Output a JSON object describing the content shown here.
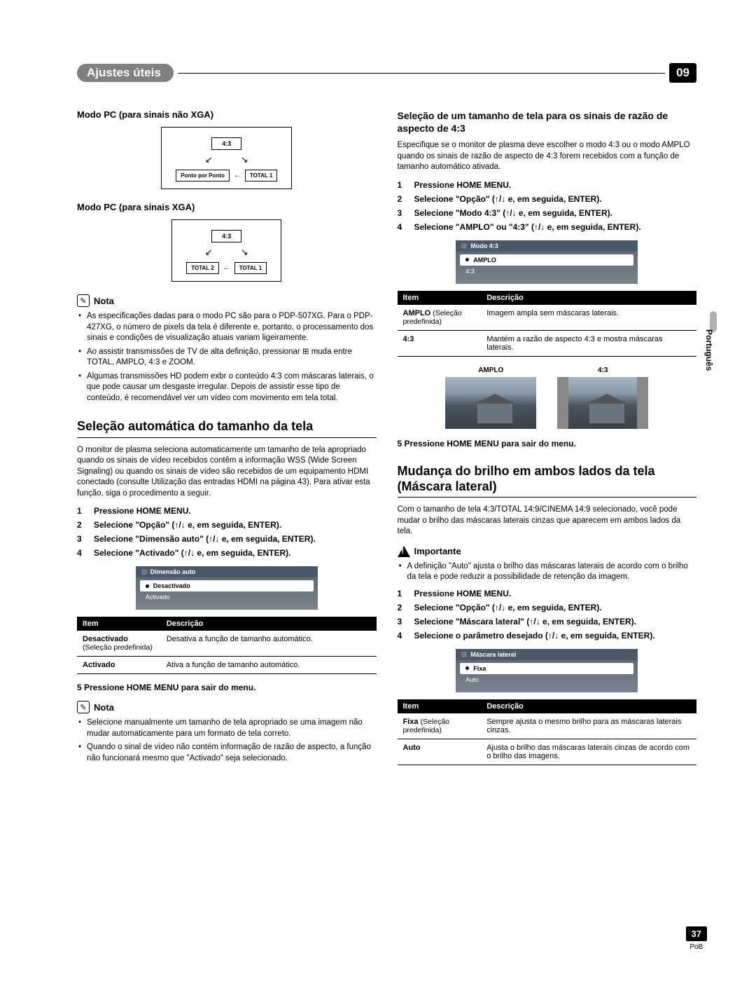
{
  "header": {
    "title": "Ajustes úteis",
    "chapter": "09"
  },
  "sideTab": "Português",
  "pageNum": "37",
  "pageSub": "PoB",
  "left": {
    "pcNonXga": {
      "title": "Modo PC (para sinais não XGA)",
      "top": "4:3",
      "bottomLeft": "Ponto por Ponto",
      "bottomRight": "TOTAL 1"
    },
    "pcXga": {
      "title": "Modo PC (para sinais XGA)",
      "top": "4:3",
      "bottomLeft": "TOTAL 2",
      "bottomRight": "TOTAL 1"
    },
    "note1": {
      "label": "Nota",
      "items": [
        "As especificações dadas para o modo PC são para o PDP-507XG. Para o PDP-427XG, o número de pixels da tela é diferente e, portanto, o processamento dos sinais e condições de visualização atuais variam ligeiramente.",
        "Ao assistir transmissões de TV de alta definição, pressionar ⊞ muda entre TOTAL, AMPLO, 4:3 e ZOOM.",
        "Algumas transmissões HD podem exbr o conteúdo 4:3 com máscaras laterais, o que pode causar um desgaste irregular. Depois de assistir esse tipo de conteúdo, é recomendável ver um vídeo com movimento em tela total."
      ]
    },
    "autoSize": {
      "title": "Seleção automática do tamanho da tela",
      "body": "O monitor de plasma seleciona automaticamente um tamanho de tela apropriado quando os sinais de vídeo recebidos contêm a informação WSS (Wide Screen Signaling) ou quando os sinais de vídeo são recebidos de um equipamento HDMI conectado (consulte Utilização das entradas HDMI na página 43). Para ativar esta função, siga o procedimento a seguir.",
      "steps": [
        "Pressione HOME MENU.",
        "Selecione \"Opção\" (↑/↓ e, em seguida, ENTER).",
        "Selecione \"Dimensão auto\" (↑/↓ e, em seguida, ENTER).",
        "Selecione \"Activado\" (↑/↓ e, em seguida, ENTER)."
      ],
      "menuTitle": "Dimensão auto",
      "menuItems": [
        "Desactivado",
        "Activado"
      ],
      "tableHead": [
        "Item",
        "Descrição"
      ],
      "tableRows": [
        {
          "k": "Desactivado",
          "sub": "(Seleção predefinida)",
          "v": "Desativa a função de tamanho automático."
        },
        {
          "k": "Activado",
          "sub": "",
          "v": "Ativa a função de tamanho automático."
        }
      ],
      "exit": "5   Pressione HOME MENU para sair do menu."
    },
    "note2": {
      "label": "Nota",
      "items": [
        "Selecione manualmente um tamanho de tela apropriado se uma imagem não mudar automaticamente para um formato de tela correto.",
        "Quando o sinal de vídeo não contém informação de razão de aspecto, a função não funcionará mesmo que \"Activado\" seja selecionado."
      ]
    }
  },
  "right": {
    "aspect": {
      "title": "Seleção de um tamanho de tela para os sinais de razão de aspecto de 4:3",
      "body": "Especifique se o monitor de plasma deve escolher o modo 4:3 ou o modo AMPLO quando os sinais de razão de aspecto de 4:3 forem recebidos com a função de tamanho automático ativada.",
      "steps": [
        "Pressione HOME MENU.",
        "Selecione \"Opção\" (↑/↓ e, em seguida, ENTER).",
        "Selecione \"Modo 4:3\" (↑/↓ e, em seguida, ENTER).",
        "Selecione \"AMPLO\" ou \"4:3\" (↑/↓ e, em seguida, ENTER)."
      ],
      "menuTitle": "Modo 4:3",
      "menuItems": [
        "AMPLO",
        "4:3"
      ],
      "tableHead": [
        "Item",
        "Descrição"
      ],
      "tableRows": [
        {
          "k": "AMPLO",
          "sub": "(Seleção predefinida)",
          "v": "Imagem ampla sem máscaras laterais."
        },
        {
          "k": "4:3",
          "sub": "",
          "v": "Mantém a razão de aspecto 4:3 e mostra máscaras laterais."
        }
      ],
      "previewLabels": [
        "AMPLO",
        "4:3"
      ],
      "exit": "5   Pressione HOME MENU para sair do menu."
    },
    "sidemask": {
      "title": "Mudança do brilho em ambos lados da tela (Máscara lateral)",
      "body": "Com o tamanho de tela 4:3/TOTAL 14:9/CINEMA 14:9 selecionado, você pode mudar o brilho das máscaras laterais cinzas que aparecem em ambos lados da tela.",
      "impLabel": "Importante",
      "impItems": [
        "A definição \"Auto\" ajusta o brilho das máscaras laterais de acordo com o brilho da tela e pode reduzir a possibilidade de retenção da imagem."
      ],
      "steps": [
        "Pressione HOME MENU.",
        "Selecione \"Opção\" (↑/↓ e, em seguida, ENTER).",
        "Selecione \"Máscara lateral\" (↑/↓ e, em seguida, ENTER).",
        "Selecione o parâmetro desejado (↑/↓ e, em seguida, ENTER)."
      ],
      "menuTitle": "Máscara lateral",
      "menuItems": [
        "Fixa",
        "Auto"
      ],
      "tableHead": [
        "Item",
        "Descrição"
      ],
      "tableRows": [
        {
          "k": "Fixa",
          "sub": "(Seleção predefinida)",
          "v": "Sempre ajusta o mesmo brilho para as máscaras laterais cinzas."
        },
        {
          "k": "Auto",
          "sub": "",
          "v": "Ajusta o brilho das máscaras laterais cinzas de acordo com o brilho das imagens."
        }
      ]
    }
  }
}
